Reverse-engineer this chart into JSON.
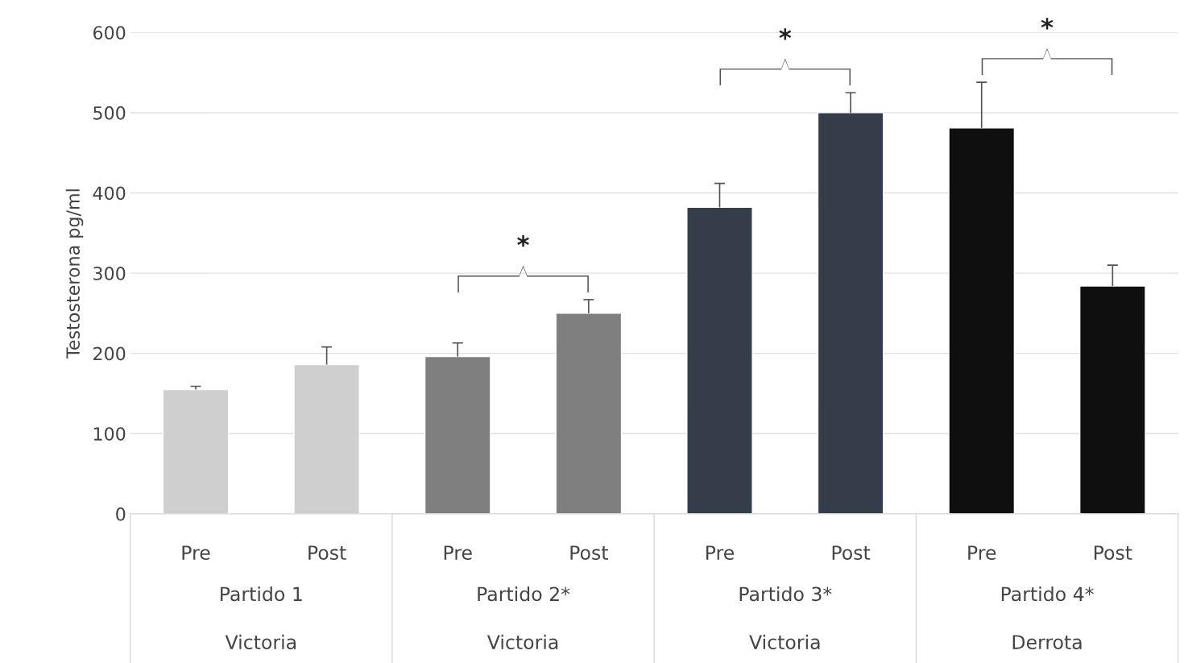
{
  "chart_data": {
    "type": "bar",
    "ylabel": "Testosterona pg/ml",
    "categories": [
      "Pre",
      "Post",
      "Pre",
      "Post",
      "Pre",
      "Post",
      "Pre",
      "Post"
    ],
    "values": [
      155,
      186,
      196,
      250,
      382,
      500,
      481,
      284
    ],
    "errors": [
      [
        155,
        159
      ],
      [
        186,
        208
      ],
      [
        196,
        213
      ],
      [
        250,
        267
      ],
      [
        382,
        412
      ],
      [
        500,
        525
      ],
      [
        481,
        538
      ],
      [
        284,
        310
      ]
    ],
    "colors": [
      "#d0cfd0",
      "#d0cfd0",
      "#7f7f7f",
      "#7f7f7f",
      "#333c4d",
      "#333c4d",
      "#0f0f0f",
      "#0f0f0f"
    ],
    "ylim": [
      0,
      600
    ],
    "yticks": [
      0,
      100,
      200,
      300,
      400,
      500,
      600
    ],
    "grid": "y",
    "annotations": [
      "Partido 1",
      "Victoria",
      "Partido 2*",
      "Victoria",
      "Partido 3*",
      "Victoria",
      "Partido 4*",
      "Derrota",
      "*",
      "*",
      "*"
    ]
  }
}
